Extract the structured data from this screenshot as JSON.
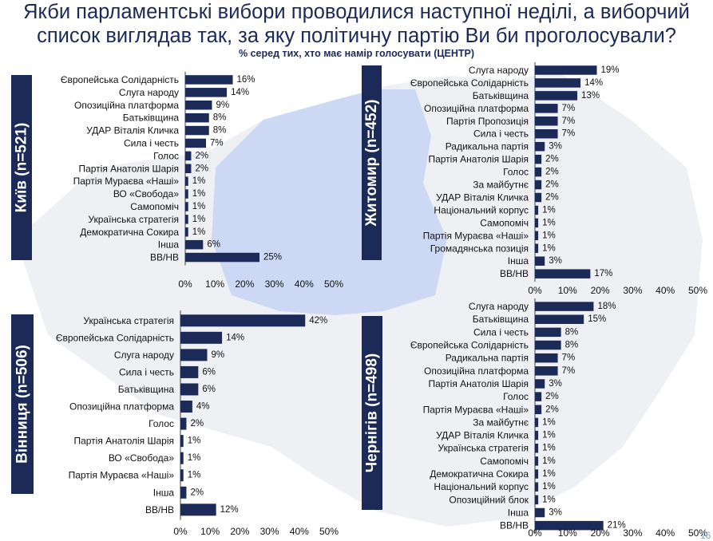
{
  "header": {
    "title_line1": "Якби парламентські вибори проводилися наступної неділі, а виборчий",
    "title_line2": "список виглядав так, за яку політичну партію Ви би проголосували?",
    "subtitle": "% серед тих, хто має намір голосувати (ЦЕНТР)",
    "page_number": "16"
  },
  "colors": {
    "bar": "#1b2a57",
    "label_box": "#1b2a57",
    "map_fill": "#ccd8f4",
    "map_bg": "#eef0f3"
  },
  "chart_data": [
    {
      "type": "bar",
      "orientation": "horizontal",
      "region_label": "Київ (n=521)",
      "categories": [
        "Європейська Солідарність",
        "Слуга народу",
        "Опозиційна платформа",
        "Батьківщина",
        "УДАР Віталія Кличка",
        "Сила і честь",
        "Голос",
        "Партія Анатолія Шарія",
        "Партія Мураєва «Наші»",
        "ВО «Свобода»",
        "Самопоміч",
        "Українська стратегія",
        "Демократична Сокира",
        "Інша",
        "ВВ/НВ"
      ],
      "values": [
        16,
        14,
        9,
        8,
        8,
        7,
        2,
        2,
        1,
        1,
        1,
        1,
        1,
        6,
        25
      ],
      "value_labels": [
        "16%",
        "14%",
        "9%",
        "8%",
        "8%",
        "7%",
        "2%",
        "2%",
        "1%",
        "1%",
        "1%",
        "1%",
        "1%",
        "6%",
        "25%"
      ],
      "xlim": [
        0,
        50
      ],
      "ticks": [
        "0%",
        "10%",
        "20%",
        "30%",
        "40%",
        "50%"
      ]
    },
    {
      "type": "bar",
      "orientation": "horizontal",
      "region_label": "Житомир (n=452)",
      "categories": [
        "Слуга народу",
        "Європейська Солідарність",
        "Батьківщина",
        "Опозиційна платформа",
        "Партія Пропозиція",
        "Сила і честь",
        "Радикальна партія",
        "Партія Анатолія Шарія",
        "Голос",
        "За майбутнє",
        "УДАР Віталія Кличка",
        "Національний корпус",
        "Самопоміч",
        "Партія Мураєва «Наші»",
        "Громадянська позиція",
        "Інша",
        "ВВ/НВ"
      ],
      "values": [
        19,
        14,
        13,
        7,
        7,
        7,
        3,
        2,
        2,
        2,
        2,
        1,
        1,
        1,
        1,
        3,
        17
      ],
      "value_labels": [
        "19%",
        "14%",
        "13%",
        "7%",
        "7%",
        "7%",
        "3%",
        "2%",
        "2%",
        "2%",
        "2%",
        "1%",
        "1%",
        "1%",
        "1%",
        "3%",
        "17%"
      ],
      "xlim": [
        0,
        50
      ],
      "ticks": [
        "0%",
        "10%",
        "20%",
        "30%",
        "40%",
        "50%"
      ]
    },
    {
      "type": "bar",
      "orientation": "horizontal",
      "region_label": "Вінниця (n=506)",
      "categories": [
        "Українська стратегія",
        "Європейська Солідарність",
        "Слуга народу",
        "Сила і честь",
        "Батьківщина",
        "Опозиційна платформа",
        "Голос",
        "Партія Анатолія Шарія",
        "ВО «Свобода»",
        "Партія Мураєва «Наші»",
        "Інша",
        "ВВ/НВ"
      ],
      "values": [
        42,
        14,
        9,
        6,
        6,
        4,
        2,
        1,
        1,
        1,
        2,
        12
      ],
      "value_labels": [
        "42%",
        "14%",
        "9%",
        "6%",
        "6%",
        "4%",
        "2%",
        "1%",
        "1%",
        "1%",
        "2%",
        "12%"
      ],
      "xlim": [
        0,
        50
      ],
      "ticks": [
        "0%",
        "10%",
        "20%",
        "30%",
        "40%",
        "50%"
      ]
    },
    {
      "type": "bar",
      "orientation": "horizontal",
      "region_label": "Чернігів (n=498)",
      "categories": [
        "Слуга народу",
        "Батьківщина",
        "Сила і честь",
        "Європейська Солідарність",
        "Радикальна партія",
        "Опозиційна платформа",
        "Партія Анатолія Шарія",
        "Голос",
        "Партія Мураєва «Наші»",
        "За майбутнє",
        "УДАР Віталія Кличка",
        "Українська стратегія",
        "Самопоміч",
        "Демократична Сокира",
        "Національний корпус",
        "Опозиційний блок",
        "Інша",
        "ВВ/НВ"
      ],
      "values": [
        18,
        15,
        8,
        8,
        7,
        7,
        3,
        2,
        2,
        1,
        1,
        1,
        1,
        1,
        1,
        1,
        3,
        21
      ],
      "value_labels": [
        "18%",
        "15%",
        "8%",
        "8%",
        "7%",
        "7%",
        "3%",
        "2%",
        "2%",
        "1%",
        "1%",
        "1%",
        "1%",
        "1%",
        "1%",
        "1%",
        "3%",
        "21%"
      ],
      "xlim": [
        0,
        50
      ],
      "ticks": [
        "0%",
        "10%",
        "20%",
        "30%",
        "40%",
        "50%"
      ]
    }
  ]
}
